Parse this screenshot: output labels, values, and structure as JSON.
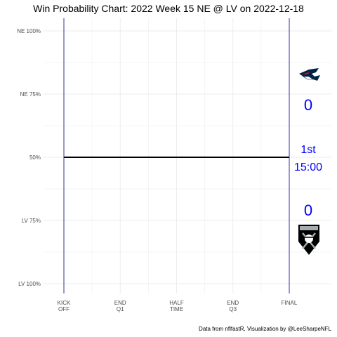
{
  "chart_data": {
    "type": "line",
    "title": "Win Probability Chart: 2022 Week 15 NE @ LV on 2022-12-18",
    "y_ticks": [
      {
        "label": "NE 100%",
        "value": 100
      },
      {
        "label": "NE 75%",
        "value": 75
      },
      {
        "label": "50%",
        "value": 50
      },
      {
        "label": "LV 75%",
        "value": 25
      },
      {
        "label": "LV 100%",
        "value": 0
      }
    ],
    "x_ticks": [
      {
        "line1": "KICK",
        "line2": "OFF",
        "value": 0
      },
      {
        "line1": "END",
        "line2": "Q1",
        "value": 15
      },
      {
        "line1": "HALF",
        "line2": "TIME",
        "value": 30
      },
      {
        "line1": "END",
        "line2": "Q3",
        "value": 45
      },
      {
        "line1": "FINAL",
        "line2": "",
        "value": 60
      }
    ],
    "xlim": [
      0,
      60
    ],
    "ylim": [
      0,
      100
    ],
    "grid": true,
    "series": [
      {
        "x": [
          0,
          60
        ],
        "y": [
          50,
          50
        ],
        "color": "#000000"
      }
    ],
    "vlines": [
      0,
      60
    ],
    "vline_color": "#00008b",
    "annotations": {
      "away_score": "0",
      "home_score": "0",
      "quarter": "1st",
      "clock": "15:00",
      "text_color": "#0000ff"
    },
    "teams": {
      "away": {
        "abbr": "NE",
        "logo_icon": "patriots-logo-icon",
        "colors": [
          "#002244",
          "#c60c30"
        ]
      },
      "home": {
        "abbr": "LV",
        "logo_icon": "raiders-logo-icon",
        "colors": [
          "#000000",
          "#a5acaf"
        ]
      }
    },
    "caption": "Data from nflfastR, Visualization by @LeeSharpeNFL"
  }
}
